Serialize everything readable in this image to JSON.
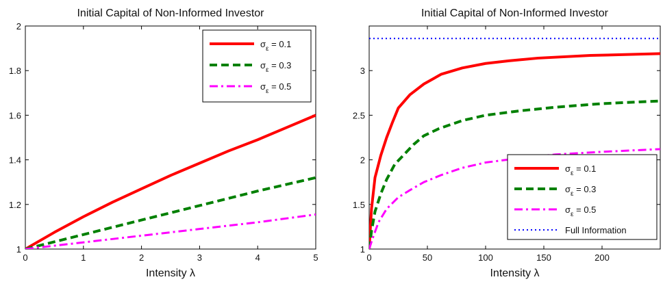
{
  "chart_data": [
    {
      "type": "line",
      "title": "Initial Capital of Non-Informed Investor",
      "xlabel": "Intensity  λ",
      "ylabel": "",
      "xlim": [
        0,
        5
      ],
      "ylim": [
        1,
        2
      ],
      "xticks": [
        0,
        1,
        2,
        3,
        4,
        5
      ],
      "yticks": [
        1,
        1.2,
        1.4,
        1.6,
        1.8,
        2
      ],
      "xtick_labels": [
        "0",
        "1",
        "2",
        "3",
        "4",
        "5"
      ],
      "ytick_labels": [
        "1",
        "1.2",
        "1.4",
        "1.6",
        "1.8",
        "2"
      ],
      "legend_position": "top-right",
      "series": [
        {
          "name": "σε = 0.1",
          "label_main": "σ",
          "label_sub": "ε",
          "label_rest": " = 0.1",
          "color": "#ff0000",
          "style": "solid",
          "x": [
            0,
            0.5,
            1,
            1.5,
            2,
            2.5,
            3,
            3.5,
            4,
            4.5,
            5
          ],
          "y": [
            1,
            1.075,
            1.145,
            1.21,
            1.27,
            1.33,
            1.385,
            1.44,
            1.49,
            1.545,
            1.6
          ]
        },
        {
          "name": "σε = 0.3",
          "label_main": "σ",
          "label_sub": "ε",
          "label_rest": " = 0.3",
          "color": "#008000",
          "style": "dashed",
          "x": [
            0,
            1,
            2,
            3,
            4,
            5
          ],
          "y": [
            1,
            1.065,
            1.13,
            1.195,
            1.26,
            1.32
          ]
        },
        {
          "name": "σε = 0.5",
          "label_main": "σ",
          "label_sub": "ε",
          "label_rest": " = 0.5",
          "color": "#ff00ff",
          "style": "dashdot",
          "x": [
            0,
            1,
            2,
            3,
            4,
            5
          ],
          "y": [
            1,
            1.03,
            1.06,
            1.09,
            1.12,
            1.155
          ]
        }
      ]
    },
    {
      "type": "line",
      "title": "Initial Capital of Non-Informed Investor",
      "xlabel": "Intensity  λ",
      "ylabel": "",
      "xlim": [
        0,
        250
      ],
      "ylim": [
        1,
        3.5
      ],
      "xticks": [
        0,
        50,
        100,
        150,
        200
      ],
      "yticks": [
        1,
        1.5,
        2,
        2.5,
        3
      ],
      "xtick_labels": [
        "0",
        "50",
        "100",
        "150",
        "200"
      ],
      "ytick_labels": [
        "1",
        "1.5",
        "2",
        "2.5",
        "3"
      ],
      "legend_position": "bottom-right",
      "series": [
        {
          "name": "σε = 0.1",
          "label_main": "σ",
          "label_sub": "ε",
          "label_rest": " = 0.1",
          "color": "#ff0000",
          "style": "solid",
          "x": [
            0,
            2,
            5,
            10,
            15,
            20,
            25,
            35,
            47,
            62,
            80,
            100,
            120,
            145,
            190,
            250
          ],
          "y": [
            1,
            1.45,
            1.8,
            2.05,
            2.25,
            2.42,
            2.58,
            2.73,
            2.85,
            2.96,
            3.03,
            3.08,
            3.11,
            3.14,
            3.17,
            3.19
          ]
        },
        {
          "name": "σε = 0.3",
          "label_main": "σ",
          "label_sub": "ε",
          "label_rest": " = 0.3",
          "color": "#008000",
          "style": "dashed",
          "x": [
            0,
            2,
            5,
            10,
            15,
            22,
            30,
            38,
            47,
            60,
            80,
            100,
            130,
            160,
            200,
            250
          ],
          "y": [
            1,
            1.2,
            1.42,
            1.62,
            1.78,
            1.95,
            2.06,
            2.17,
            2.27,
            2.35,
            2.44,
            2.5,
            2.55,
            2.59,
            2.63,
            2.66
          ]
        },
        {
          "name": "σε = 0.5",
          "label_main": "σ",
          "label_sub": "ε",
          "label_rest": " = 0.5",
          "color": "#ff00ff",
          "style": "dashdot",
          "x": [
            0,
            3,
            8,
            15,
            25,
            35,
            47,
            62,
            80,
            100,
            130,
            160,
            200,
            250
          ],
          "y": [
            1,
            1.12,
            1.3,
            1.45,
            1.58,
            1.66,
            1.75,
            1.83,
            1.91,
            1.97,
            2.02,
            2.06,
            2.09,
            2.12
          ]
        },
        {
          "name": "Full Information",
          "label_main": "Full Information",
          "label_sub": "",
          "label_rest": "",
          "color": "#0000ff",
          "style": "dotted",
          "x": [
            0,
            250
          ],
          "y": [
            3.36,
            3.36
          ]
        }
      ]
    }
  ]
}
